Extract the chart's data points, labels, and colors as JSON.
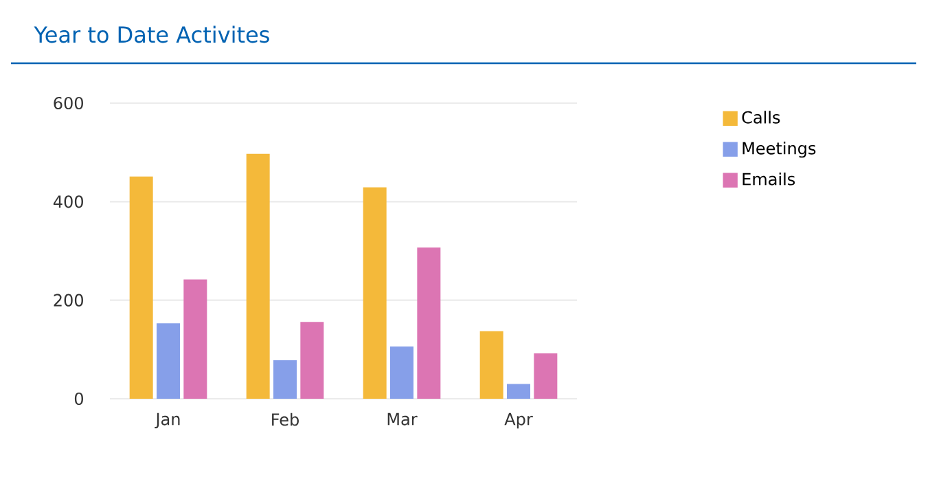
{
  "chart_data": {
    "type": "bar",
    "title": "Year to Date Activites",
    "categories": [
      "Jan",
      "Feb",
      "Mar",
      "Apr"
    ],
    "series": [
      {
        "name": "Calls",
        "color": "#f4b93a",
        "values": [
          451,
          497,
          429,
          137
        ]
      },
      {
        "name": "Meetings",
        "color": "#869fe9",
        "values": [
          153,
          78,
          106,
          30
        ]
      },
      {
        "name": "Emails",
        "color": "#dc75b3",
        "values": [
          242,
          156,
          307,
          92
        ]
      }
    ],
    "ylim": [
      0,
      600
    ],
    "yticks": [
      0,
      200,
      400,
      600
    ],
    "grid": "y",
    "legend": "right"
  }
}
